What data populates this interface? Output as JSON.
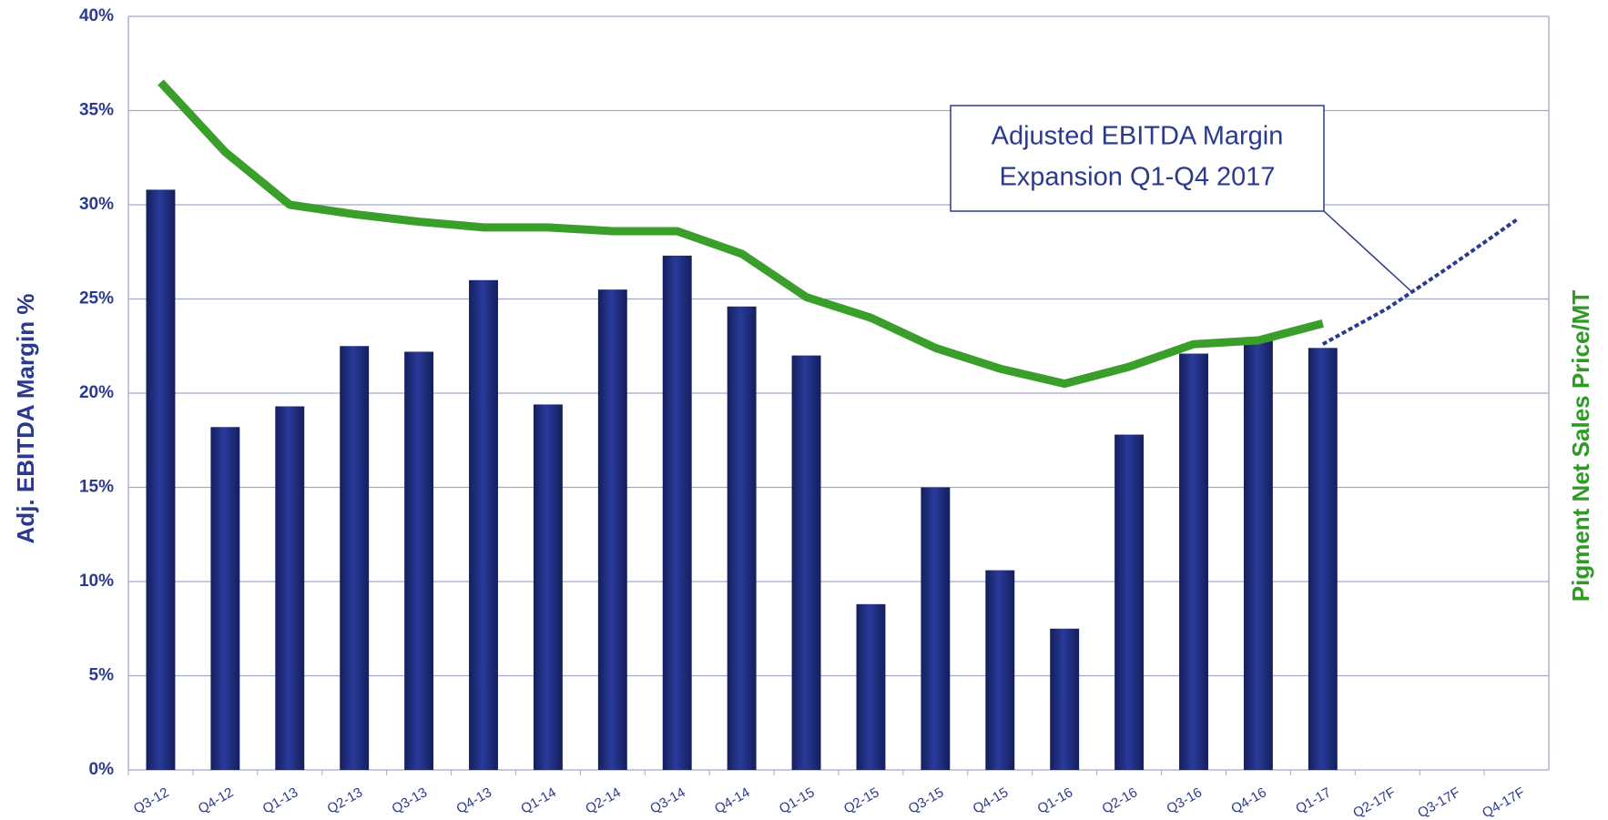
{
  "chart_data": {
    "type": "bar",
    "y_label": "Adj. EBITDA Margin %",
    "y2_label": "Pigment Net Sales Price/MT",
    "annotation": [
      "Adjusted EBITDA Margin",
      "Expansion Q1-Q4 2017"
    ],
    "categories": [
      "Q3-12",
      "Q4-12",
      "Q1-13",
      "Q2-13",
      "Q3-13",
      "Q4-13",
      "Q1-14",
      "Q2-14",
      "Q3-14",
      "Q4-14",
      "Q1-15",
      "Q2-15",
      "Q3-15",
      "Q4-15",
      "Q1-16",
      "Q2-16",
      "Q3-16",
      "Q4-16",
      "Q1-17",
      "Q2-17F",
      "Q3-17F",
      "Q4-17F"
    ],
    "series": [
      {
        "type": "bar",
        "color": "#1f2d80",
        "values": [
          30.8,
          18.2,
          19.3,
          22.5,
          22.2,
          26.0,
          19.4,
          25.5,
          27.3,
          24.6,
          22.0,
          8.8,
          15.0,
          10.6,
          7.5,
          17.8,
          22.1,
          22.8,
          22.4,
          null,
          null,
          null
        ]
      },
      {
        "type": "line",
        "color": "#3a9e2a",
        "values": [
          36.5,
          32.8,
          30.0,
          29.5,
          29.1,
          28.8,
          28.8,
          28.6,
          28.6,
          27.4,
          25.1,
          24.0,
          22.4,
          21.3,
          20.5,
          21.4,
          22.6,
          22.8,
          23.7,
          null,
          null,
          null
        ]
      },
      {
        "type": "line",
        "dashed": true,
        "color": "#2b3a8f",
        "values": [
          null,
          null,
          null,
          null,
          null,
          null,
          null,
          null,
          null,
          null,
          null,
          null,
          null,
          null,
          null,
          null,
          null,
          null,
          22.6,
          24.5,
          26.8,
          29.2
        ]
      }
    ],
    "ylim": [
      0,
      40
    ],
    "yticks": [
      {
        "value": 0,
        "label": "0%"
      },
      {
        "value": 5,
        "label": "5%"
      },
      {
        "value": 10,
        "label": "10%"
      },
      {
        "value": 15,
        "label": "15%"
      },
      {
        "value": 20,
        "label": "20%"
      },
      {
        "value": 25,
        "label": "25%"
      },
      {
        "value": 30,
        "label": "30%"
      },
      {
        "value": 35,
        "label": "35%"
      },
      {
        "value": 40,
        "label": "40%"
      }
    ],
    "grid": true
  }
}
